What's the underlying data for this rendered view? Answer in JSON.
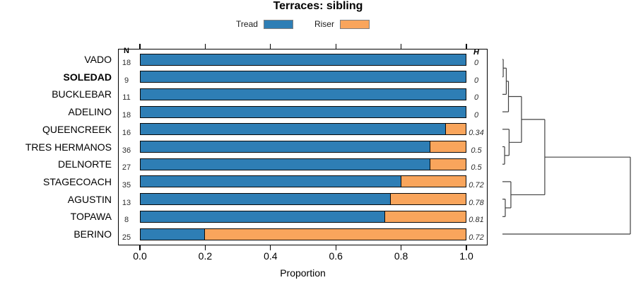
{
  "chart_data": {
    "type": "bar",
    "orientation": "horizontal-stacked",
    "title": "Terraces: sibling",
    "xlabel": "Proportion",
    "xlim": [
      0,
      1
    ],
    "x_ticks": [
      0,
      0.2,
      0.4,
      0.6,
      0.8,
      1.0
    ],
    "x_tick_labels": [
      "0.0",
      "0.2",
      "0.4",
      "0.6",
      "0.8",
      "1.0"
    ],
    "grid": false,
    "legend_position": "top-center",
    "legend": [
      {
        "name": "Tread",
        "color": "#2e7eb5"
      },
      {
        "name": "Riser",
        "color": "#f9a55c"
      }
    ],
    "n_header": "N",
    "h_header": "H",
    "rows": [
      {
        "category": "VADO",
        "n": 18,
        "tread": 1.0,
        "riser": 0.0,
        "h": "0",
        "bold": false
      },
      {
        "category": "SOLEDAD",
        "n": 9,
        "tread": 1.0,
        "riser": 0.0,
        "h": "0",
        "bold": true
      },
      {
        "category": "BUCKLEBAR",
        "n": 11,
        "tread": 1.0,
        "riser": 0.0,
        "h": "0",
        "bold": false
      },
      {
        "category": "ADELINO",
        "n": 18,
        "tread": 1.0,
        "riser": 0.0,
        "h": "0",
        "bold": false
      },
      {
        "category": "QUEENCREEK",
        "n": 16,
        "tread": 0.9375,
        "riser": 0.0625,
        "h": "0.34",
        "bold": false
      },
      {
        "category": "TRES HERMANOS",
        "n": 36,
        "tread": 0.889,
        "riser": 0.111,
        "h": "0.5",
        "bold": false
      },
      {
        "category": "DELNORTE",
        "n": 27,
        "tread": 0.889,
        "riser": 0.111,
        "h": "0.5",
        "bold": false
      },
      {
        "category": "STAGECOACH",
        "n": 35,
        "tread": 0.8,
        "riser": 0.2,
        "h": "0.72",
        "bold": false
      },
      {
        "category": "AGUSTIN",
        "n": 13,
        "tread": 0.769,
        "riser": 0.231,
        "h": "0.78",
        "bold": false
      },
      {
        "category": "TOPAWA",
        "n": 8,
        "tread": 0.75,
        "riser": 0.25,
        "h": "0.81",
        "bold": false
      },
      {
        "category": "BERINO",
        "n": 25,
        "tread": 0.2,
        "riser": 0.8,
        "h": "0.72",
        "bold": false
      }
    ],
    "dendrogram": {
      "leaf_order": [
        "VADO",
        "SOLEDAD",
        "BUCKLEBAR",
        "ADELINO",
        "QUEENCREEK",
        "TRES HERMANOS",
        "DELNORTE",
        "STAGECOACH",
        "AGUSTIN",
        "TOPAWA",
        "BERINO"
      ],
      "merges": [
        {
          "id": "m1",
          "a": "VADO",
          "b": "SOLEDAD",
          "height": 0.006
        },
        {
          "id": "m2",
          "a": "m1",
          "b": "BUCKLEBAR",
          "height": 0.03
        },
        {
          "id": "m3",
          "a": "m2",
          "b": "ADELINO",
          "height": 0.047
        },
        {
          "id": "m4",
          "a": "TRES HERMANOS",
          "b": "DELNORTE",
          "height": 0.017
        },
        {
          "id": "m5",
          "a": "QUEENCREEK",
          "b": "m4",
          "height": 0.052
        },
        {
          "id": "m6",
          "a": "m3",
          "b": "m5",
          "height": 0.149
        },
        {
          "id": "m7",
          "a": "AGUSTIN",
          "b": "TOPAWA",
          "height": 0.022
        },
        {
          "id": "m8",
          "a": "STAGECOACH",
          "b": "m7",
          "height": 0.066
        },
        {
          "id": "m9",
          "a": "m6",
          "b": "m8",
          "height": 0.331
        },
        {
          "id": "m10",
          "a": "m9",
          "b": "BERINO",
          "height": 1.0
        }
      ]
    },
    "colors": {
      "tread": "#2e7eb5",
      "riser": "#f9a55c",
      "bar_border": "#0a0a0a",
      "dendro_line": "#404040",
      "frame": "#000000"
    }
  }
}
